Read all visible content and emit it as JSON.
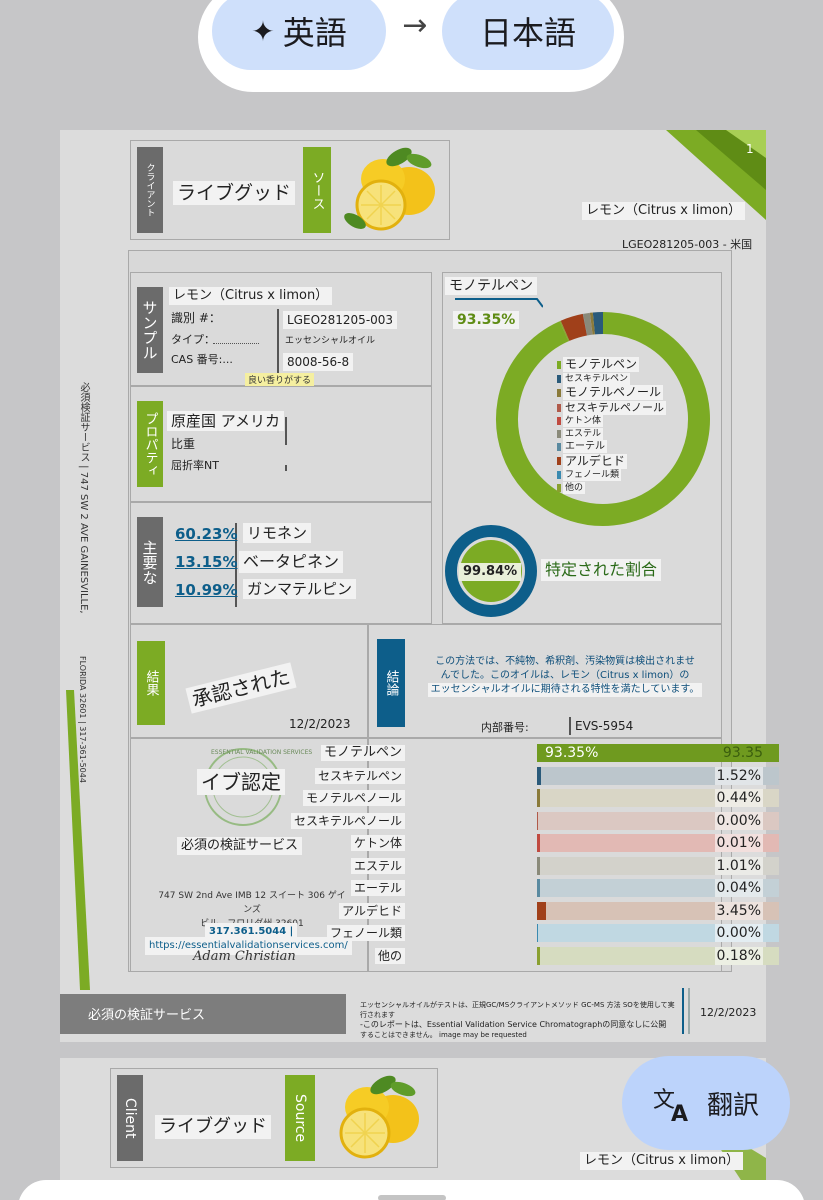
{
  "translate_bar": {
    "source_lang": "英語",
    "arrow": "→",
    "target_lang": "日本語",
    "sparkle_icon": "sparkle-icon"
  },
  "page1": {
    "page_number": "1",
    "client_tab": "クライアント",
    "client_name": "ライブグッド",
    "source_tab": "ソース",
    "product_name": "レモン（Citrus x limon）",
    "lot": "LGEO281205-003 - 米国",
    "sample": {
      "tab": "サンプル",
      "name": "レモン（Citrus x limon）",
      "id_label": "識別 #：",
      "type_label": "タイプ：",
      "cas_label": "CAS 番号:...",
      "id_value": "LGEO281205-003",
      "type_value": "エッセンシャルオイル",
      "cas_value": "8008-56-8",
      "note": "良い香りがする"
    },
    "property": {
      "tab": "プロパティ",
      "origin": "原産国 アメリカ",
      "gravity": "比重",
      "refraction": "屈折率NT"
    },
    "main": {
      "tab": "主要な",
      "items": [
        {
          "pct": "60.23%",
          "name": "リモネン"
        },
        {
          "pct": "13.15%",
          "name": "ベータピネン"
        },
        {
          "pct": "10.99%",
          "name": "ガンマテルピン"
        }
      ]
    },
    "donut": {
      "title": "モノテルペン",
      "value": "93.35%",
      "legend": [
        "モノテルペン",
        "セスキテルペン",
        "モノテルペノール",
        "セスキテルペノール",
        "ケトン体",
        "エステル",
        "エーテル",
        "アルデヒド",
        "フェノール類",
        "他の"
      ]
    },
    "identified": {
      "value": "99.84%",
      "label": "特定された割合"
    },
    "result": {
      "tab": "結果",
      "stamp": "承認された",
      "date": "12/2/2023"
    },
    "conclusion": {
      "tab": "結論",
      "text_line1": "この方法では、不純物、希釈剤、汚染物質は検出されませ",
      "text_line2": "んでした。このオイルは、レモン（Citrus x limon）の",
      "text_line3": "エッセンシャルオイルに期待される特性を満たしています。",
      "internal_label": "内部番号:",
      "internal_value": "EVS-5954"
    },
    "cert": {
      "title": "イブ認定",
      "seal_text": "ESSENTIAL VALIDATION SERVICES",
      "subtitle": "必須の検証サービス",
      "address_line1": "747 SW 2nd Ave IMB 12 スイート 306 ゲインズ",
      "address_line2": "ビル、フロリダ州 32601",
      "phone": "317.361.5044 |",
      "url": "https://essentialvalidationservices.com/",
      "signature": "Adam Christian"
    },
    "bars": [
      {
        "name": "モノテルペン",
        "value": "93.35%",
        "right_value": "93.35",
        "fraction": 1.0,
        "color": "#6f9a1f",
        "bg": "#6f9a1f"
      },
      {
        "name": "セスキテルペン",
        "value": "1.52%",
        "fraction": 0.016,
        "color": "#2a5a7a",
        "bg": "#bcc6cc"
      },
      {
        "name": "モノテルペノール",
        "value": "0.44%",
        "fraction": 0.005,
        "color": "#8a7a3a",
        "bg": "#d9d6c6"
      },
      {
        "name": "セスキテルペノール",
        "value": "0.00%",
        "fraction": 0.0,
        "color": "#b05a4a",
        "bg": "#dbc8c2"
      },
      {
        "name": "ケトン体",
        "value": "0.01%",
        "fraction": 0.001,
        "color": "#c04a40",
        "bg": "#e2b9b4"
      },
      {
        "name": "エステル",
        "value": "1.01%",
        "fraction": 0.011,
        "color": "#8a8a7a",
        "bg": "#d3d2cb"
      },
      {
        "name": "エーテル",
        "value": "0.04%",
        "fraction": 0.001,
        "color": "#5a8aa0",
        "bg": "#c3d0d6"
      },
      {
        "name": "アルデヒド",
        "value": "3.45%",
        "fraction": 0.037,
        "color": "#a0401a",
        "bg": "#d7c2b6"
      },
      {
        "name": "フェノール類",
        "value": "0.00%",
        "fraction": 0.0,
        "color": "#3a8ab0",
        "bg": "#c0d8e2"
      },
      {
        "name": "他の",
        "value": "0.18%",
        "fraction": 0.002,
        "color": "#8aa030",
        "bg": "#d6dcc0"
      }
    ],
    "side_text": "必須検証サービス | 747 SW 2 AVE GAINESVILLE,",
    "side_text2": "FLORIDA 32601 | 317-361-5044",
    "footer": {
      "left": "必須の検証サービス",
      "mid_line1": "エッセンシャルオイルがテストは、正規GC/MSクライアントメソッド GC-MS  方法   SOを使用して実行されます",
      "mid_line2": "-このレポートは、Essential Validation Service Chromatographの同意なしに公開",
      "mid_line3": "することはできません。 image may be requested",
      "date": "12/2/2023"
    }
  },
  "page2": {
    "client_tab": "Client",
    "client_name": "ライブグッド",
    "source_tab": "Source",
    "product_name": "レモン（Citrus x limon）"
  },
  "translate_button": {
    "label": "翻訳",
    "icon": "translate-icon"
  },
  "colors": {
    "accent_green": "#7cab24",
    "accent_blue": "#0d5e8a",
    "pill_blue": "#cfe0fb"
  }
}
